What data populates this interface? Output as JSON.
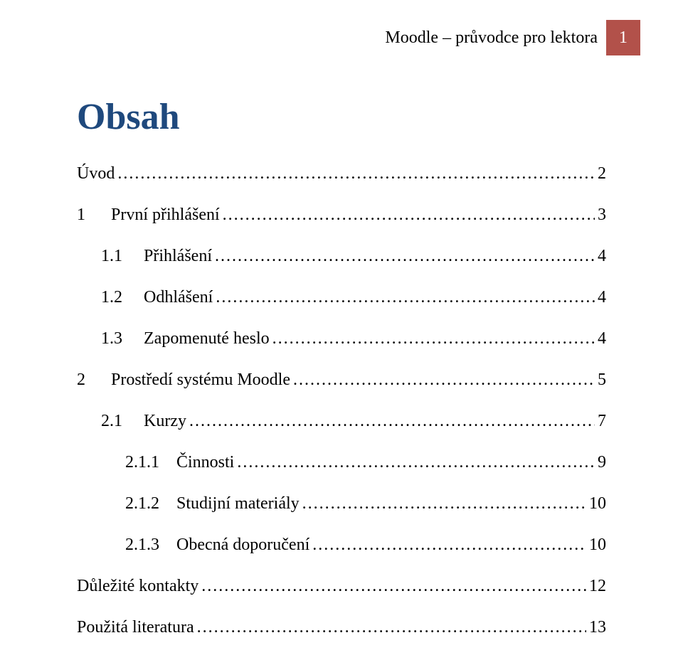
{
  "header": {
    "title": "Moodle – průvodce pro lektora",
    "page_number": "1",
    "badge_bg": "#b2514a",
    "badge_fg": "#ffffff"
  },
  "heading": {
    "text": "Obsah",
    "color": "#1f497d",
    "fontsize_pt": 39
  },
  "typography": {
    "body_fontsize_pt": 18,
    "font_family": "Times New Roman",
    "text_color": "#000000",
    "background_color": "#ffffff"
  },
  "toc": [
    {
      "level": 0,
      "number": "",
      "title": "Úvod",
      "page": "2"
    },
    {
      "level": 1,
      "number": "1",
      "title": "První přihlášení",
      "page": "3"
    },
    {
      "level": 2,
      "number": "1.1",
      "title": "Přihlášení",
      "page": "4"
    },
    {
      "level": 2,
      "number": "1.2",
      "title": "Odhlášení",
      "page": "4"
    },
    {
      "level": 2,
      "number": "1.3",
      "title": "Zapomenuté heslo",
      "page": "4"
    },
    {
      "level": 1,
      "number": "2",
      "title": "Prostředí systému Moodle",
      "page": "5"
    },
    {
      "level": 2,
      "number": "2.1",
      "title": "Kurzy",
      "page": "7"
    },
    {
      "level": 3,
      "number": "2.1.1",
      "title": "Činnosti",
      "page": "9"
    },
    {
      "level": 3,
      "number": "2.1.2",
      "title": "Studijní materiály",
      "page": "10"
    },
    {
      "level": 3,
      "number": "2.1.3",
      "title": "Obecná doporučení",
      "page": "10"
    },
    {
      "level": 0,
      "number": "",
      "title": "Důležité kontakty",
      "page": "12"
    },
    {
      "level": 0,
      "number": "",
      "title": "Použitá literatura",
      "page": "13"
    }
  ]
}
